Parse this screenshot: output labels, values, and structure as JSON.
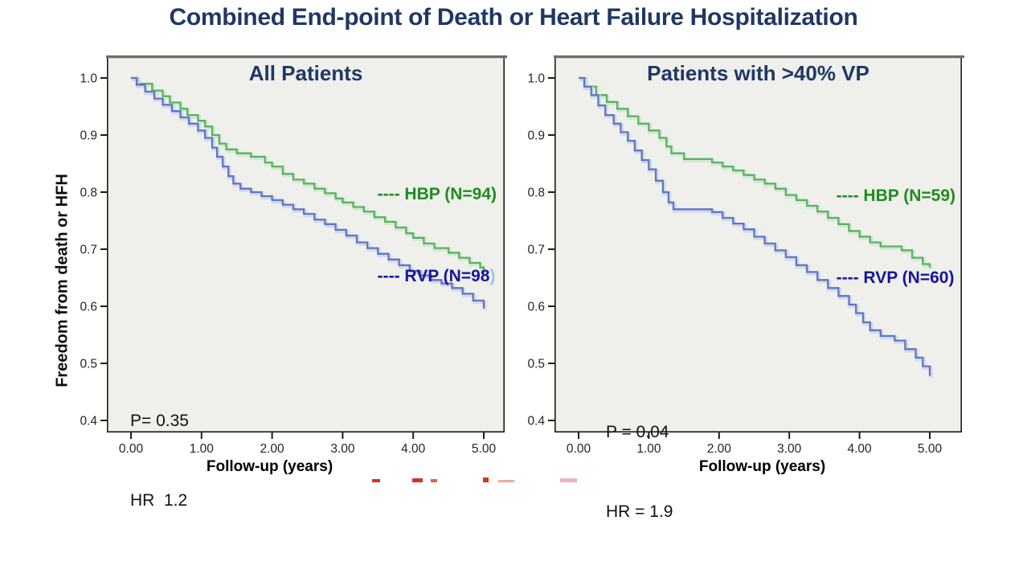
{
  "header": {
    "title": "Combined End-point of Death or Heart Failure Hospitalization",
    "title_color": "#1f3864"
  },
  "chart_data": [
    {
      "type": "line",
      "subtype": "kaplan_meier_step",
      "title": "All Patients",
      "xlabel": "Follow-up (years)",
      "ylabel": "Freedom from death or HFH",
      "xlim": [
        0,
        5
      ],
      "ylim": [
        0.4,
        1.0
      ],
      "xticks": [
        0,
        1,
        2,
        3,
        4,
        5
      ],
      "xtick_labels": [
        "0.00",
        "1.00",
        "2.00",
        "3.00",
        "4.00",
        "5.00"
      ],
      "yticks": [
        1.0,
        0.9,
        0.8,
        0.7,
        0.6,
        0.5,
        0.4
      ],
      "ytick_labels": [
        "1.0",
        "0.9",
        "0.8",
        "0.7",
        "0.6",
        "0.5",
        "0.4"
      ],
      "grid": false,
      "plot_bg": "#efefec",
      "legend_position": "inside upper right",
      "stats": {
        "p": "P= 0.35",
        "hr": "HR  1.2"
      },
      "legend": [
        {
          "dashes": "----",
          "label": " HBP (N=94)",
          "suffix": "",
          "color": "#1e8c1e",
          "suffix_color": "#9dc3e6"
        },
        {
          "dashes": "----",
          "label": " RVP (N=98",
          "suffix": ")",
          "color": "#16169a",
          "suffix_color": "#9dc3e6"
        }
      ],
      "series": [
        {
          "name": "HBP",
          "n": 94,
          "color": "#57b35f",
          "halo": "#cfe6d0",
          "x": [
            0.0,
            0.1,
            0.3,
            0.45,
            0.55,
            0.7,
            0.8,
            0.95,
            1.05,
            1.15,
            1.25,
            1.35,
            1.5,
            1.7,
            1.9,
            2.0,
            2.15,
            2.3,
            2.45,
            2.6,
            2.75,
            2.9,
            3.0,
            3.15,
            3.3,
            3.45,
            3.6,
            3.75,
            3.9,
            4.0,
            4.15,
            4.3,
            4.5,
            4.65,
            4.8,
            4.95,
            5.0
          ],
          "y": [
            1.0,
            0.99,
            0.978,
            0.968,
            0.957,
            0.946,
            0.935,
            0.925,
            0.915,
            0.9,
            0.885,
            0.875,
            0.868,
            0.862,
            0.852,
            0.845,
            0.832,
            0.822,
            0.815,
            0.806,
            0.798,
            0.789,
            0.782,
            0.774,
            0.766,
            0.756,
            0.748,
            0.738,
            0.728,
            0.72,
            0.71,
            0.702,
            0.694,
            0.685,
            0.676,
            0.668,
            0.658
          ]
        },
        {
          "name": "RVP",
          "n": 98,
          "color": "#6076c1",
          "halo": "#c9d6ee",
          "x": [
            0.0,
            0.08,
            0.2,
            0.33,
            0.45,
            0.58,
            0.7,
            0.82,
            0.95,
            1.05,
            1.15,
            1.22,
            1.3,
            1.38,
            1.45,
            1.55,
            1.7,
            1.85,
            2.0,
            2.15,
            2.3,
            2.45,
            2.6,
            2.75,
            2.9,
            3.05,
            3.2,
            3.35,
            3.5,
            3.65,
            3.8,
            3.95,
            4.1,
            4.25,
            4.4,
            4.55,
            4.7,
            4.85,
            5.0
          ],
          "y": [
            1.0,
            0.988,
            0.976,
            0.964,
            0.953,
            0.942,
            0.931,
            0.92,
            0.908,
            0.895,
            0.878,
            0.862,
            0.845,
            0.828,
            0.815,
            0.806,
            0.8,
            0.793,
            0.786,
            0.778,
            0.77,
            0.762,
            0.752,
            0.744,
            0.734,
            0.724,
            0.712,
            0.702,
            0.692,
            0.682,
            0.672,
            0.662,
            0.654,
            0.646,
            0.64,
            0.632,
            0.622,
            0.61,
            0.596
          ]
        }
      ]
    },
    {
      "type": "line",
      "subtype": "kaplan_meier_step",
      "title": "Patients with >40% VP",
      "xlabel": "Follow-up (years)",
      "ylabel": "",
      "xlim": [
        0,
        5
      ],
      "ylim": [
        0.4,
        1.0
      ],
      "xticks": [
        0,
        1,
        2,
        3,
        4,
        5
      ],
      "xtick_labels": [
        "0.00",
        "1.00",
        "2.00",
        "3.00",
        "4.00",
        "5.00"
      ],
      "yticks": [
        1.0,
        0.9,
        0.8,
        0.7,
        0.6,
        0.5,
        0.4
      ],
      "ytick_labels": [
        "1.0",
        "0.9",
        "0.8",
        "0.7",
        "0.6",
        "0.5",
        "0.4"
      ],
      "grid": false,
      "plot_bg": "#efefec",
      "legend_position": "inside upper right",
      "stats": {
        "p": "P = 0.04",
        "hr": "HR = 1.9"
      },
      "legend": [
        {
          "dashes": "----",
          "label": " HBP (N=59)",
          "suffix": "",
          "color": "#1e8c1e",
          "suffix_color": "#9dc3e6"
        },
        {
          "dashes": "----",
          "label": " RVP (N=60)",
          "suffix": "",
          "color": "#16169a",
          "suffix_color": "#9dc3e6"
        }
      ],
      "series": [
        {
          "name": "HBP",
          "n": 59,
          "color": "#57b35f",
          "halo": "#cfe6d0",
          "x": [
            0.0,
            0.1,
            0.25,
            0.4,
            0.55,
            0.7,
            0.85,
            1.0,
            1.15,
            1.25,
            1.32,
            1.5,
            1.9,
            2.05,
            2.2,
            2.35,
            2.5,
            2.65,
            2.8,
            2.95,
            3.1,
            3.25,
            3.4,
            3.55,
            3.7,
            3.85,
            4.0,
            4.15,
            4.3,
            4.6,
            4.75,
            4.9,
            5.0
          ],
          "y": [
            1.0,
            0.985,
            0.97,
            0.958,
            0.946,
            0.933,
            0.92,
            0.908,
            0.895,
            0.88,
            0.868,
            0.858,
            0.852,
            0.845,
            0.838,
            0.83,
            0.822,
            0.815,
            0.806,
            0.795,
            0.786,
            0.776,
            0.766,
            0.755,
            0.744,
            0.732,
            0.722,
            0.712,
            0.705,
            0.698,
            0.685,
            0.674,
            0.668
          ]
        },
        {
          "name": "RVP",
          "n": 60,
          "color": "#6076c1",
          "halo": "#c9d6ee",
          "x": [
            0.0,
            0.08,
            0.18,
            0.28,
            0.38,
            0.5,
            0.6,
            0.7,
            0.8,
            0.9,
            1.0,
            1.1,
            1.2,
            1.28,
            1.35,
            1.9,
            2.05,
            2.2,
            2.35,
            2.5,
            2.65,
            2.8,
            2.95,
            3.1,
            3.25,
            3.4,
            3.55,
            3.7,
            3.85,
            3.95,
            4.05,
            4.15,
            4.3,
            4.5,
            4.65,
            4.8,
            4.9,
            5.0
          ],
          "y": [
            1.0,
            0.985,
            0.97,
            0.952,
            0.935,
            0.92,
            0.905,
            0.89,
            0.873,
            0.856,
            0.84,
            0.82,
            0.8,
            0.782,
            0.77,
            0.765,
            0.755,
            0.745,
            0.735,
            0.722,
            0.71,
            0.698,
            0.686,
            0.672,
            0.66,
            0.646,
            0.632,
            0.618,
            0.603,
            0.588,
            0.572,
            0.558,
            0.548,
            0.54,
            0.525,
            0.51,
            0.495,
            0.478
          ]
        }
      ]
    }
  ]
}
